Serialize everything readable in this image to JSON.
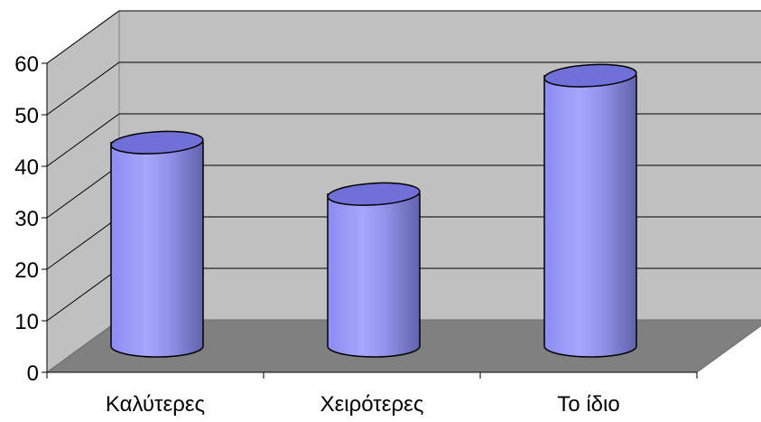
{
  "chart_data": {
    "type": "bar",
    "style": "3d-cylinder",
    "categories": [
      "Καλύτερες",
      "Χειρότερες",
      "Το ίδιο"
    ],
    "values": [
      46,
      36,
      59
    ],
    "title": "",
    "xlabel": "",
    "ylabel": "",
    "ylim": [
      0,
      60
    ],
    "yticks": [
      0,
      10,
      20,
      30,
      40,
      50,
      60
    ],
    "grid": true,
    "legend": "none",
    "colors": {
      "bar": "#9999ff",
      "wall": "#c0c0c0",
      "floor": "#808080"
    }
  }
}
